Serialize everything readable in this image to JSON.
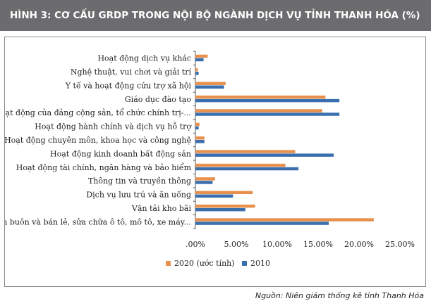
{
  "header": {
    "title": "HÌNH 3: CƠ CẤU GRDP TRONG NỘI BỘ NGÀNH DỊCH VỤ TỈNH THANH HÓA (%)"
  },
  "source": "Nguồn: Niên giám thống kê tỉnh Thanh Hóa",
  "chart_data": {
    "type": "bar",
    "orientation": "horizontal",
    "title": "HÌNH 3: CƠ CẤU GRDP TRONG NỘI BỘ NGÀNH DỊCH VỤ TỈNH THANH HÓA (%)",
    "xlabel": "",
    "ylabel": "",
    "xlim": [
      0,
      0.25
    ],
    "x_ticks": [
      ".00%",
      "5.00%",
      "10.00%",
      "15.00%",
      "20.00%",
      "25.00%"
    ],
    "grid": false,
    "legend_position": "bottom",
    "categories": [
      "Hoạt động dịch vụ khác",
      "Nghệ thuật, vui chơi và giải trí",
      "Y tế và hoạt động cứu trợ xã hội",
      "Giáo dục đào tạo",
      "Hoạt động của đảng cộng sản, tổ chức chính trị-...",
      "Hoạt động hành chính và dịch vụ hỗ trợ",
      "Hoạt động chuyên môn, khoa học và công nghệ",
      "Hoạt động kinh doanh bất động sản",
      "Hoạt động tài chính, ngân hàng và bảo hiểm",
      "Thông tin và truyền thông",
      "Dịch vụ lưu trú và ăn uống",
      "Vận tải kho bãi",
      "Bán buôn và bán lẻ, sửa chữa ô tô, mô tô, xe máy..."
    ],
    "series": [
      {
        "name": "2020 (ước tính)",
        "color": "#e8914f",
        "values": [
          0.015,
          0.003,
          0.037,
          0.159,
          0.155,
          0.005,
          0.011,
          0.122,
          0.11,
          0.024,
          0.07,
          0.073,
          0.218
        ]
      },
      {
        "name": "2010",
        "color": "#3a6fae",
        "values": [
          0.01,
          0.004,
          0.035,
          0.176,
          0.176,
          0.004,
          0.011,
          0.169,
          0.126,
          0.021,
          0.046,
          0.061,
          0.163
        ]
      }
    ]
  }
}
